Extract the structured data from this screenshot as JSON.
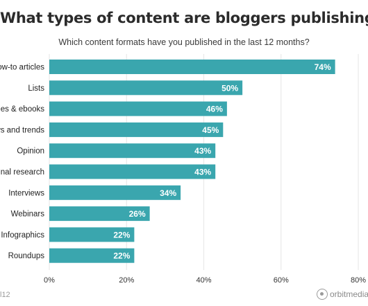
{
  "title": "What types of content are bloggers publishing?",
  "subtitle": "Which content formats have you published in the last 12 months?",
  "footer": {
    "left_text": "l12",
    "logo_text": "orbitmedia"
  },
  "colors": {
    "bar": "#3aa6ae",
    "grid": "#e6e6e6",
    "text": "#222222",
    "value_text": "#ffffff"
  },
  "chart_data": {
    "type": "bar",
    "orientation": "horizontal",
    "title": "What types of content are bloggers publishing?",
    "subtitle": "Which content formats have you published in the last 12 months?",
    "categories": [
      "How-to articles",
      "Lists",
      "Guides & ebooks",
      "News and trends",
      "Opinion",
      "Original research",
      "Interviews",
      "Webinars",
      "Infographics",
      "Roundups"
    ],
    "values": [
      74,
      50,
      46,
      45,
      43,
      43,
      34,
      26,
      22,
      22
    ],
    "value_labels": [
      "74%",
      "50%",
      "46%",
      "45%",
      "43%",
      "43%",
      "34%",
      "26%",
      "22%",
      "22%"
    ],
    "xticks": [
      "0%",
      "20%",
      "40%",
      "60%",
      "80%"
    ],
    "xlim": [
      0,
      80
    ],
    "grid": true,
    "xlabel": "",
    "ylabel": ""
  }
}
